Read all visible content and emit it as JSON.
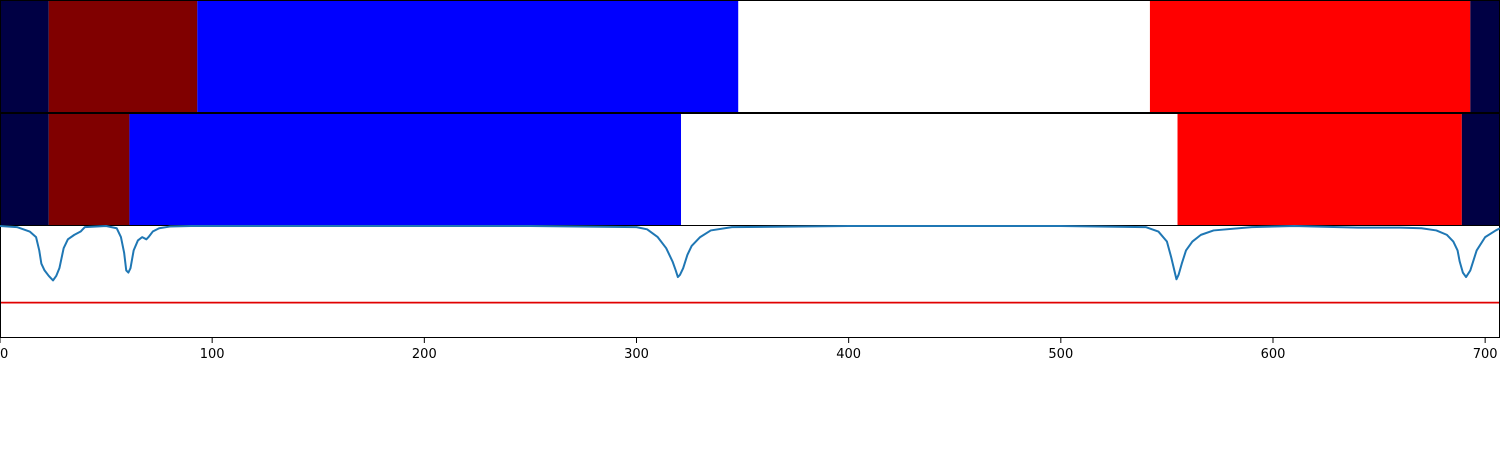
{
  "chart_data": {
    "type": "segmentation-timeline",
    "xlim": [
      0,
      707
    ],
    "xticks": [
      0,
      100,
      200,
      300,
      400,
      500,
      600,
      700
    ],
    "tick_labels": [
      "0",
      "100",
      "200",
      "300",
      "400",
      "500",
      "600",
      "700"
    ],
    "colors": {
      "navy": "#000044",
      "maroon": "#800000",
      "blue": "#0000ff",
      "white": "#ffffff",
      "red": "#ff0000",
      "curve": "#1f77b4",
      "threshold": "#e00000"
    },
    "rows": [
      {
        "segments": [
          {
            "start": 0,
            "end": 23,
            "color": "navy"
          },
          {
            "start": 23,
            "end": 93,
            "color": "maroon"
          },
          {
            "start": 93,
            "end": 348,
            "color": "blue"
          },
          {
            "start": 348,
            "end": 542,
            "color": "white"
          },
          {
            "start": 542,
            "end": 693,
            "color": "red"
          },
          {
            "start": 693,
            "end": 707,
            "color": "navy"
          }
        ]
      },
      {
        "segments": [
          {
            "start": 0,
            "end": 23,
            "color": "navy"
          },
          {
            "start": 23,
            "end": 61,
            "color": "maroon"
          },
          {
            "start": 61,
            "end": 321,
            "color": "blue"
          },
          {
            "start": 321,
            "end": 555,
            "color": "white"
          },
          {
            "start": 555,
            "end": 689,
            "color": "red"
          },
          {
            "start": 689,
            "end": 707,
            "color": "navy"
          }
        ]
      }
    ],
    "curve": {
      "ylim": [
        0,
        1
      ],
      "threshold": 0.31,
      "x": [
        0,
        8,
        14,
        17,
        18.5,
        19.5,
        21,
        23,
        25,
        26.5,
        28,
        30,
        32,
        35,
        38,
        40,
        50,
        55,
        57,
        58.5,
        59.5,
        60.5,
        61.5,
        63,
        65,
        67,
        69,
        70,
        72,
        75,
        80,
        90,
        150,
        250,
        300,
        305,
        310,
        314,
        317,
        318.5,
        319.5,
        320.5,
        322,
        324,
        326,
        330,
        335,
        345,
        400,
        500,
        540,
        546,
        550,
        552,
        553.5,
        554.5,
        555.5,
        557,
        559,
        562,
        566,
        572,
        590,
        610,
        640,
        660,
        670,
        677,
        682,
        685,
        687,
        688,
        689.5,
        691,
        693,
        696,
        700,
        705,
        707
      ],
      "y": [
        1.0,
        0.99,
        0.95,
        0.9,
        0.78,
        0.66,
        0.6,
        0.55,
        0.51,
        0.55,
        0.62,
        0.8,
        0.88,
        0.92,
        0.95,
        0.99,
        1.0,
        0.98,
        0.9,
        0.76,
        0.6,
        0.58,
        0.62,
        0.78,
        0.87,
        0.9,
        0.88,
        0.9,
        0.95,
        0.98,
        0.995,
        1.0,
        1.0,
        1.0,
        0.99,
        0.97,
        0.9,
        0.8,
        0.68,
        0.6,
        0.54,
        0.56,
        0.62,
        0.74,
        0.82,
        0.9,
        0.96,
        0.99,
        1.0,
        1.0,
        0.99,
        0.95,
        0.86,
        0.72,
        0.6,
        0.52,
        0.56,
        0.66,
        0.78,
        0.86,
        0.92,
        0.96,
        0.99,
        1.0,
        0.985,
        0.985,
        0.98,
        0.96,
        0.92,
        0.86,
        0.78,
        0.68,
        0.58,
        0.54,
        0.6,
        0.78,
        0.9,
        0.96,
        0.98
      ]
    }
  }
}
